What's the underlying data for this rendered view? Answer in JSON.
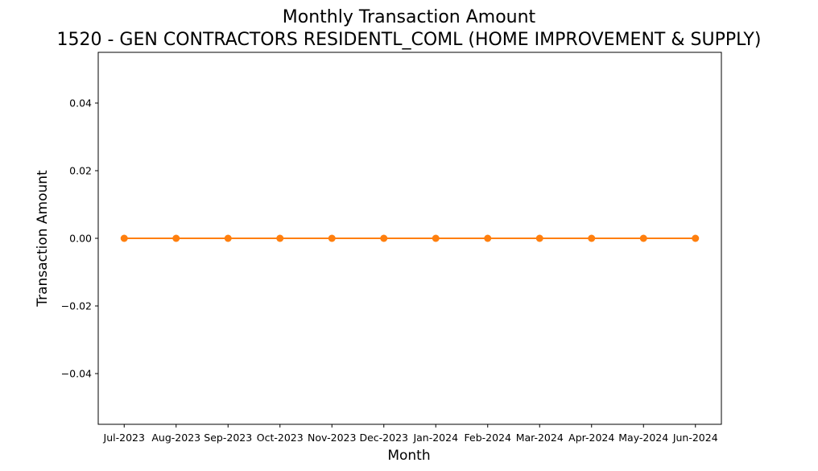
{
  "chart_data": {
    "type": "line",
    "title": "Monthly Transaction Amount",
    "subtitle": "1520 - GEN CONTRACTORS RESIDENTL_COML (HOME IMPROVEMENT & SUPPLY)",
    "xlabel": "Month",
    "ylabel": "Transaction Amount",
    "categories": [
      "Jul-2023",
      "Aug-2023",
      "Sep-2023",
      "Oct-2023",
      "Nov-2023",
      "Dec-2023",
      "Jan-2024",
      "Feb-2024",
      "Mar-2024",
      "Apr-2024",
      "May-2024",
      "Jun-2024"
    ],
    "series": [
      {
        "values": [
          0,
          0,
          0,
          0,
          0,
          0,
          0,
          0,
          0,
          0,
          0,
          0
        ],
        "color": "#ff7f0e",
        "marker": "circle"
      }
    ],
    "ylim": [
      -0.055,
      0.055
    ],
    "yticks": [
      -0.04,
      -0.02,
      0.0,
      0.02,
      0.04
    ],
    "ytick_labels": [
      "−0.04",
      "−0.02",
      "0.00",
      "0.02",
      "0.04"
    ],
    "grid": false,
    "legend": "none"
  }
}
